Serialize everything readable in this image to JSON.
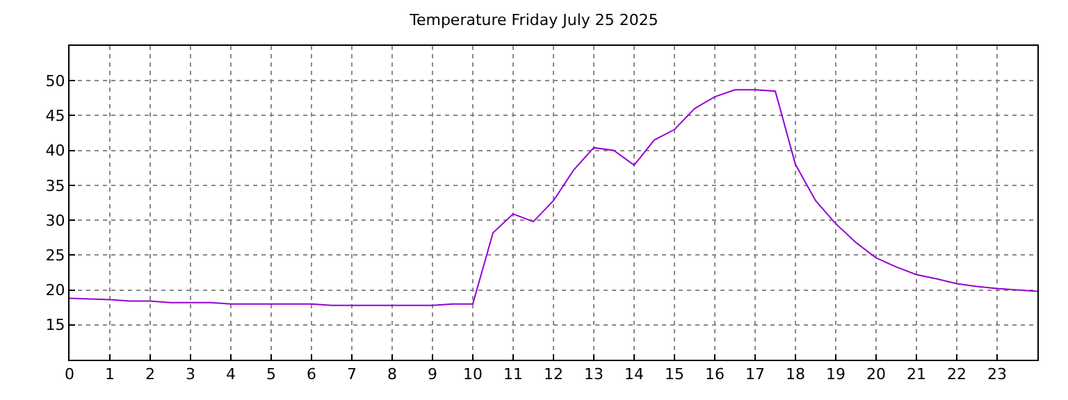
{
  "chart_data": {
    "type": "line",
    "title": "Temperature Friday July 25 2025",
    "x": [
      0,
      0.5,
      1,
      1.5,
      2,
      2.5,
      3,
      3.5,
      4,
      4.5,
      5,
      5.5,
      6,
      6.5,
      7,
      7.5,
      8,
      8.5,
      9,
      9.5,
      10,
      10.5,
      11,
      11.5,
      12,
      12.5,
      13,
      13.5,
      14,
      14.5,
      15,
      15.5,
      16,
      16.5,
      17,
      17.5,
      18,
      18.5,
      19,
      19.5,
      20,
      20.5,
      21,
      21.5,
      22,
      22.5,
      23,
      23.5,
      24
    ],
    "series": [
      {
        "color": "#9400d3",
        "values": [
          18.8,
          18.7,
          18.6,
          18.4,
          18.4,
          18.2,
          18.2,
          18.2,
          18.0,
          18.0,
          18.0,
          18.0,
          18.0,
          17.8,
          17.8,
          17.8,
          17.8,
          17.8,
          17.8,
          18.0,
          18.0,
          28.2,
          30.9,
          29.8,
          32.8,
          37.2,
          40.4,
          40.0,
          37.9,
          41.5,
          43.0,
          46.0,
          47.7,
          48.7,
          48.7,
          48.5,
          38.0,
          32.8,
          29.5,
          26.8,
          24.6,
          23.3,
          22.2,
          21.6,
          20.9,
          20.5,
          20.2,
          20.0,
          19.8
        ]
      }
    ],
    "xlim": [
      0,
      24
    ],
    "xticks": [
      0,
      1,
      2,
      3,
      4,
      5,
      6,
      7,
      8,
      9,
      10,
      11,
      12,
      13,
      14,
      15,
      16,
      17,
      18,
      19,
      20,
      21,
      22,
      23
    ],
    "ylim": [
      10,
      55
    ],
    "yticks": [
      15,
      20,
      25,
      30,
      35,
      40,
      45,
      50
    ],
    "grid": true,
    "marker": "none",
    "line_style": "solid"
  }
}
